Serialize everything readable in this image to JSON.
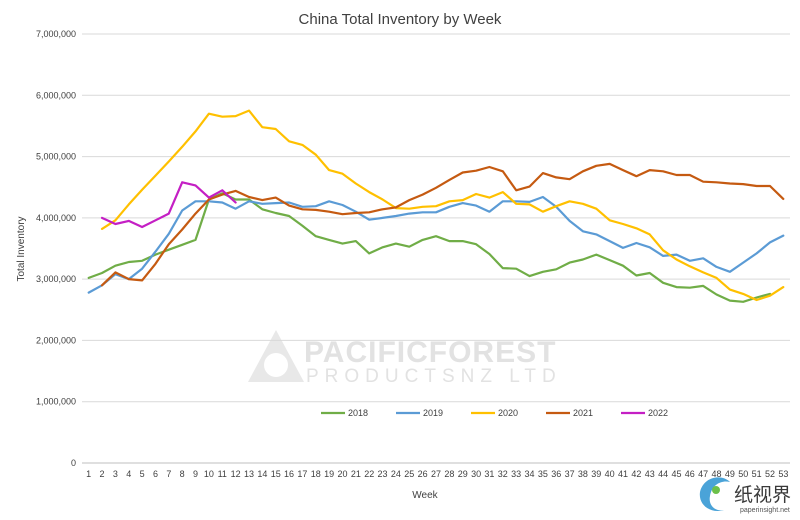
{
  "chart_data": {
    "type": "line",
    "title": "China Total Inventory by Week",
    "xlabel": "Week",
    "ylabel": "Total Inventory",
    "ylim": [
      0,
      7000000
    ],
    "y_ticks": [
      "0",
      "1,000,000",
      "2,000,000",
      "3,000,000",
      "4,000,000",
      "5,000,000",
      "6,000,000",
      "7,000,000"
    ],
    "y_tick_values": [
      0,
      1000000,
      2000000,
      3000000,
      4000000,
      5000000,
      6000000,
      7000000
    ],
    "categories": [
      "1",
      "2",
      "3",
      "4",
      "5",
      "6",
      "7",
      "8",
      "9",
      "10",
      "11",
      "12",
      "13",
      "14",
      "15",
      "16",
      "17",
      "18",
      "19",
      "20",
      "21",
      "22",
      "23",
      "24",
      "25",
      "26",
      "27",
      "28",
      "29",
      "30",
      "31",
      "32",
      "33",
      "34",
      "35",
      "36",
      "37",
      "38",
      "39",
      "40",
      "41",
      "42",
      "43",
      "44",
      "45",
      "46",
      "47",
      "48",
      "49",
      "50",
      "51",
      "52",
      "53"
    ],
    "grid": "horizontal",
    "legend_position": "bottom-center",
    "series": [
      {
        "name": "2018",
        "color": "#70ad47",
        "values": [
          3020000,
          3100000,
          3220000,
          3280000,
          3300000,
          3400000,
          3480000,
          3560000,
          3640000,
          4300000,
          4400000,
          4300000,
          4300000,
          4140000,
          4080000,
          4030000,
          3870000,
          3700000,
          3640000,
          3580000,
          3620000,
          3420000,
          3520000,
          3580000,
          3530000,
          3640000,
          3700000,
          3620000,
          3620000,
          3570000,
          3410000,
          3180000,
          3170000,
          3050000,
          3120000,
          3160000,
          3270000,
          3320000,
          3400000,
          3310000,
          3220000,
          3060000,
          3100000,
          2940000,
          2870000,
          2860000,
          2890000,
          2750000,
          2650000,
          2630000,
          2700000,
          2760000,
          null
        ]
      },
      {
        "name": "2019",
        "color": "#5b9bd5",
        "values": [
          2780000,
          2900000,
          3080000,
          3000000,
          3170000,
          3450000,
          3740000,
          4120000,
          4270000,
          4270000,
          4250000,
          4150000,
          4270000,
          4230000,
          4240000,
          4250000,
          4180000,
          4190000,
          4270000,
          4210000,
          4100000,
          3970000,
          4000000,
          4030000,
          4070000,
          4090000,
          4090000,
          4180000,
          4240000,
          4200000,
          4100000,
          4270000,
          4270000,
          4260000,
          4340000,
          4180000,
          3950000,
          3780000,
          3730000,
          3620000,
          3510000,
          3590000,
          3520000,
          3380000,
          3400000,
          3300000,
          3340000,
          3200000,
          3120000,
          3270000,
          3420000,
          3600000,
          3710000
        ]
      },
      {
        "name": "2020",
        "color": "#ffc000",
        "values": [
          null,
          3820000,
          3960000,
          4220000,
          4460000,
          4690000,
          4920000,
          5160000,
          5410000,
          5700000,
          5650000,
          5660000,
          5750000,
          5480000,
          5450000,
          5250000,
          5190000,
          5030000,
          4780000,
          4720000,
          4560000,
          4420000,
          4300000,
          4160000,
          4150000,
          4180000,
          4190000,
          4270000,
          4290000,
          4390000,
          4330000,
          4420000,
          4230000,
          4220000,
          4100000,
          4190000,
          4270000,
          4230000,
          4150000,
          3960000,
          3900000,
          3830000,
          3730000,
          3470000,
          3320000,
          3210000,
          3110000,
          3020000,
          2830000,
          2760000,
          2660000,
          2730000,
          2870000
        ]
      },
      {
        "name": "2021",
        "color": "#c55a11",
        "values": [
          null,
          2900000,
          3110000,
          3000000,
          2980000,
          3250000,
          3570000,
          3810000,
          4070000,
          4300000,
          4380000,
          4440000,
          4340000,
          4290000,
          4330000,
          4200000,
          4140000,
          4130000,
          4100000,
          4060000,
          4080000,
          4090000,
          4140000,
          4170000,
          4290000,
          4380000,
          4490000,
          4620000,
          4740000,
          4770000,
          4830000,
          4760000,
          4450000,
          4510000,
          4730000,
          4660000,
          4630000,
          4760000,
          4850000,
          4880000,
          4780000,
          4680000,
          4780000,
          4760000,
          4700000,
          4700000,
          4590000,
          4580000,
          4560000,
          4550000,
          4520000,
          4520000,
          4310000
        ]
      },
      {
        "name": "2022",
        "color": "#c41fc4",
        "values": [
          null,
          4000000,
          3900000,
          3950000,
          3850000,
          3960000,
          4070000,
          4580000,
          4530000,
          4330000,
          4450000,
          4250000,
          null,
          null,
          null,
          null,
          null,
          null,
          null,
          null,
          null,
          null,
          null,
          null,
          null,
          null,
          null,
          null,
          null,
          null,
          null,
          null,
          null,
          null,
          null,
          null,
          null,
          null,
          null,
          null,
          null,
          null,
          null,
          null,
          null,
          null,
          null,
          null,
          null,
          null,
          null,
          null,
          null
        ]
      }
    ]
  },
  "watermark": {
    "line1": "PACIFICFOREST",
    "line2": "PRODUCTSNZ LTD"
  },
  "brand": {
    "name": "纸视界",
    "url": "paperinsight.net"
  }
}
